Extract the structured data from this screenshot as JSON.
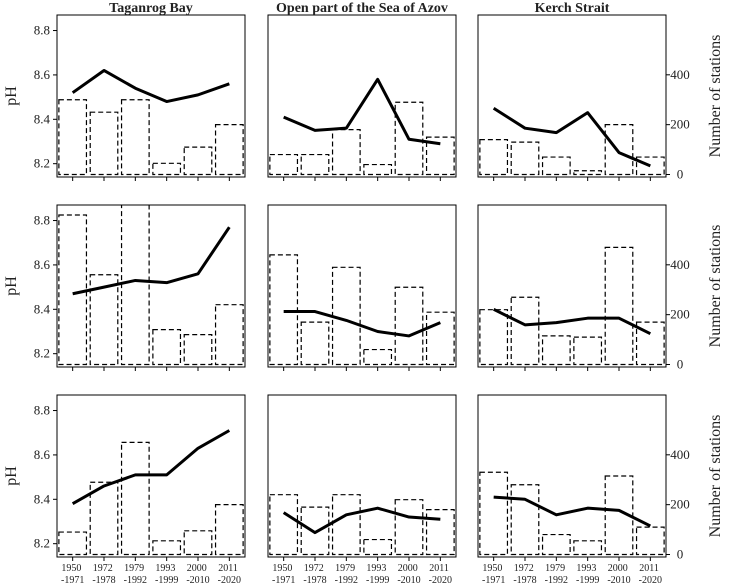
{
  "chart_data": [
    {
      "type": "combo",
      "title": "Taganrog Bay",
      "ylabel": "pH",
      "categories": [
        null,
        null,
        null,
        null,
        null,
        null
      ],
      "ylim": [
        8.14,
        8.87
      ],
      "yticks": [
        8.2,
        8.4,
        8.6,
        8.8
      ],
      "y2lim": [
        -10,
        640
      ],
      "series": [
        {
          "kind": "bar",
          "axis": "y2",
          "color": "#000000",
          "values": [
            300,
            250,
            300,
            45,
            110,
            200
          ]
        },
        {
          "kind": "line",
          "color": "#000000",
          "values": [
            8.52,
            8.62,
            8.54,
            8.48,
            8.51,
            8.56
          ]
        }
      ]
    },
    {
      "type": "combo",
      "title": "Open part of the Sea of Azov",
      "categories": [
        null,
        null,
        null,
        null,
        null,
        null
      ],
      "ylim": [
        8.14,
        8.87
      ],
      "y2lim": [
        -10,
        640
      ],
      "series": [
        {
          "kind": "bar",
          "axis": "y2",
          "color": "#000000",
          "values": [
            80,
            80,
            180,
            40,
            290,
            150
          ]
        },
        {
          "kind": "line",
          "color": "#000000",
          "values": [
            8.41,
            8.35,
            8.36,
            8.58,
            8.31,
            8.29
          ]
        }
      ]
    },
    {
      "type": "combo",
      "title": "Kerch Strait",
      "y2label": "Number of stations",
      "categories": [
        null,
        null,
        null,
        null,
        null,
        null
      ],
      "ylim": [
        8.14,
        8.87
      ],
      "y2lim": [
        -10,
        640
      ],
      "y2ticks": [
        0,
        200,
        400
      ],
      "series": [
        {
          "kind": "bar",
          "axis": "y2",
          "color": "#000000",
          "values": [
            140,
            130,
            70,
            15,
            200,
            70
          ]
        },
        {
          "kind": "line",
          "color": "#000000",
          "values": [
            8.45,
            8.36,
            8.34,
            8.43,
            8.25,
            8.19
          ]
        }
      ]
    },
    {
      "type": "combo",
      "ylabel": "pH",
      "categories": [
        null,
        null,
        null,
        null,
        null,
        null
      ],
      "ylim": [
        8.14,
        8.87
      ],
      "yticks": [
        8.2,
        8.4,
        8.6,
        8.8
      ],
      "y2lim": [
        -10,
        640
      ],
      "series": [
        {
          "kind": "bar",
          "axis": "y2",
          "color": "#000000",
          "values": [
            600,
            360,
            660,
            140,
            120,
            240
          ]
        },
        {
          "kind": "line",
          "color": "#000000",
          "values": [
            8.47,
            8.5,
            8.53,
            8.52,
            8.56,
            8.77
          ]
        }
      ]
    },
    {
      "type": "combo",
      "categories": [
        null,
        null,
        null,
        null,
        null,
        null
      ],
      "ylim": [
        8.14,
        8.87
      ],
      "y2lim": [
        -10,
        640
      ],
      "series": [
        {
          "kind": "bar",
          "axis": "y2",
          "color": "#000000",
          "values": [
            440,
            170,
            390,
            60,
            310,
            210
          ]
        },
        {
          "kind": "line",
          "color": "#000000",
          "values": [
            8.39,
            8.39,
            8.35,
            8.3,
            8.28,
            8.34
          ]
        }
      ]
    },
    {
      "type": "combo",
      "y2label": "Number of stations",
      "categories": [
        null,
        null,
        null,
        null,
        null,
        null
      ],
      "ylim": [
        8.14,
        8.87
      ],
      "y2lim": [
        -10,
        640
      ],
      "y2ticks": [
        0,
        200,
        400
      ],
      "series": [
        {
          "kind": "bar",
          "axis": "y2",
          "color": "#000000",
          "values": [
            220,
            270,
            115,
            110,
            470,
            170
          ]
        },
        {
          "kind": "line",
          "color": "#000000",
          "values": [
            8.4,
            8.33,
            8.34,
            8.36,
            8.36,
            8.29
          ]
        }
      ]
    },
    {
      "type": "combo",
      "ylabel": "pH",
      "categories": [
        "1950 -1971",
        "1972 -1978",
        "1979 -1992",
        "1993 -1999",
        "2000 -2010",
        "2011 -2020"
      ],
      "ylim": [
        8.14,
        8.87
      ],
      "yticks": [
        8.2,
        8.4,
        8.6,
        8.8
      ],
      "y2lim": [
        -10,
        640
      ],
      "series": [
        {
          "kind": "bar",
          "axis": "y2",
          "color": "#000000",
          "values": [
            90,
            290,
            450,
            55,
            95,
            200
          ]
        },
        {
          "kind": "line",
          "color": "#000000",
          "values": [
            8.38,
            8.46,
            8.51,
            8.51,
            8.63,
            8.71
          ]
        }
      ]
    },
    {
      "type": "combo",
      "categories": [
        "1950 -1971",
        "1972 -1978",
        "1979 -1992",
        "1993 -1999",
        "2000 -2010",
        "2011 -2020"
      ],
      "ylim": [
        8.14,
        8.87
      ],
      "y2lim": [
        -10,
        640
      ],
      "series": [
        {
          "kind": "bar",
          "axis": "y2",
          "color": "#000000",
          "values": [
            240,
            190,
            240,
            60,
            220,
            180
          ]
        },
        {
          "kind": "line",
          "color": "#000000",
          "values": [
            8.34,
            8.25,
            8.33,
            8.36,
            8.32,
            8.31
          ]
        }
      ]
    },
    {
      "type": "combo",
      "y2label": "Number of stations",
      "categories": [
        "1950 -1971",
        "1972 -1978",
        "1979 -1992",
        "1993 -1999",
        "2000 -2010",
        "2011 -2020"
      ],
      "ylim": [
        8.14,
        8.87
      ],
      "y2lim": [
        -10,
        640
      ],
      "y2ticks": [
        0,
        200,
        400
      ],
      "series": [
        {
          "kind": "bar",
          "axis": "y2",
          "color": "#000000",
          "values": [
            330,
            280,
            80,
            55,
            315,
            110
          ]
        },
        {
          "kind": "line",
          "color": "#000000",
          "values": [
            8.41,
            8.4,
            8.33,
            8.36,
            8.35,
            8.28
          ]
        }
      ]
    }
  ]
}
